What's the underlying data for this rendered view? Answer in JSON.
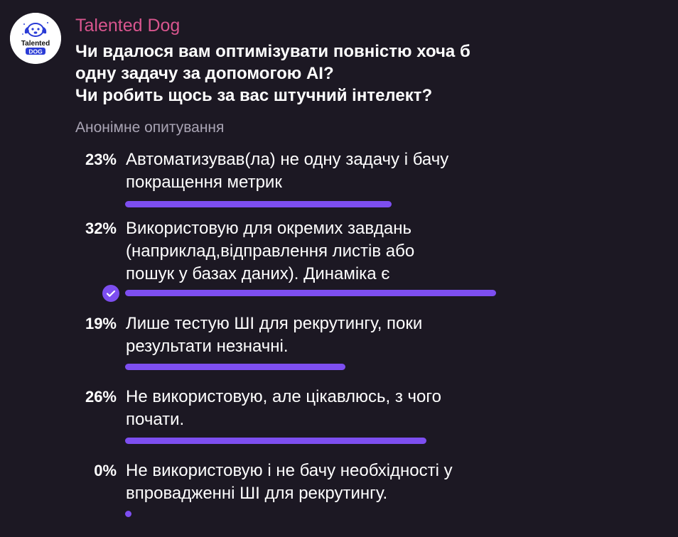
{
  "channel": {
    "name": "Talented Dog",
    "avatar_text": "Talented DOG",
    "avatar_icon": "dog-logo-icon"
  },
  "poll": {
    "question_lines": [
      "Чи вдалося вам оптимізувати повністю хоча б",
      "одну задачу за допомогою AI?",
      "Чи робить щось за вас штучний інтелект?"
    ],
    "type_label": "Анонімне опитування",
    "accent_color": "#7d4ef0",
    "options": [
      {
        "percent_label": "23%",
        "percent_value": 23,
        "text_lines": [
          "Автоматизував(ла) не одну задачу і бачу",
          "покращення метрик"
        ],
        "selected": false
      },
      {
        "percent_label": "32%",
        "percent_value": 32,
        "text_lines": [
          "Використовую для окремих завдань",
          "(наприклад,відправлення листів або",
          "пошук у базах даних). Динаміка є"
        ],
        "selected": true
      },
      {
        "percent_label": "19%",
        "percent_value": 19,
        "text_lines": [
          "Лише тестую ШІ для рекрутингу, поки",
          "результати незначні."
        ],
        "selected": false
      },
      {
        "percent_label": "26%",
        "percent_value": 26,
        "text_lines": [
          "Не використовую, але цікавлюсь, з чого",
          "почати."
        ],
        "selected": false
      },
      {
        "percent_label": "0%",
        "percent_value": 0,
        "text_lines": [
          "Не використовую і не бачу необхідності у",
          "впровадженні ШІ для рекрутингу."
        ],
        "selected": false
      }
    ]
  }
}
